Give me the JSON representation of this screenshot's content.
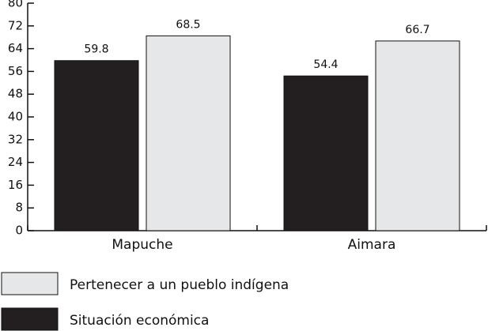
{
  "chart_data": {
    "type": "bar",
    "categories": [
      "Mapuche",
      "Aimara"
    ],
    "series": [
      {
        "name": "Situación económica",
        "color": "#231f20",
        "values": [
          59.8,
          54.4
        ]
      },
      {
        "name": "Pertenecer a un pueblo indígena",
        "color": "#e6e7e8",
        "values": [
          68.5,
          66.7
        ]
      }
    ],
    "ylim": [
      0,
      80
    ],
    "yticks": [
      0,
      8,
      16,
      24,
      32,
      40,
      48,
      56,
      64,
      72,
      80
    ],
    "grid": false
  }
}
